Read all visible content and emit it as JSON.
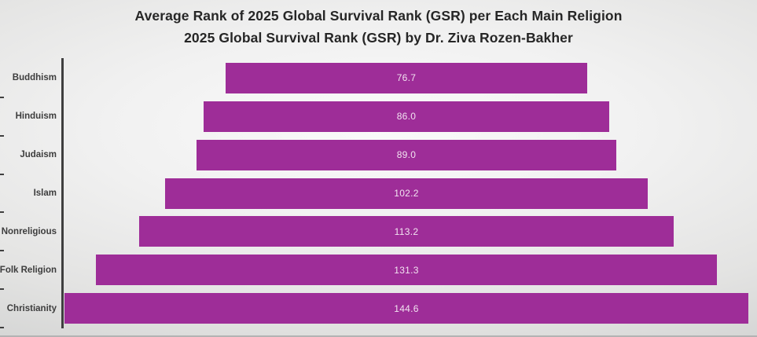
{
  "chart_data": {
    "type": "bar",
    "orientation": "horizontal-centered-funnel",
    "title": "Average Rank of 2025 Global Survival Rank (GSR) per Each Main Religion",
    "subtitle": "2025 Global Survival Rank (GSR) by Dr. Ziva Rozen-Bakher",
    "categories": [
      "Buddhism",
      "Hinduism",
      "Judaism",
      "Islam",
      "Nonreligious",
      "Folk Religion",
      "Christianity"
    ],
    "values": [
      76.7,
      86.0,
      89.0,
      102.2,
      113.2,
      131.3,
      144.6
    ],
    "value_labels": [
      "76.7",
      "86.0",
      "89.0",
      "102.2",
      "113.2",
      "131.3",
      "144.6"
    ],
    "xlabel": "",
    "ylabel": "",
    "xlim": [
      0,
      150
    ],
    "grid": false,
    "legend": "none",
    "data_label_position": "inside-center",
    "colors": {
      "bar": "#9e2d98",
      "axis_line": "#3f3f3f",
      "category_label": "#3d3d3d",
      "value_text": "#f2e4f1",
      "title_text": "#262626"
    }
  }
}
